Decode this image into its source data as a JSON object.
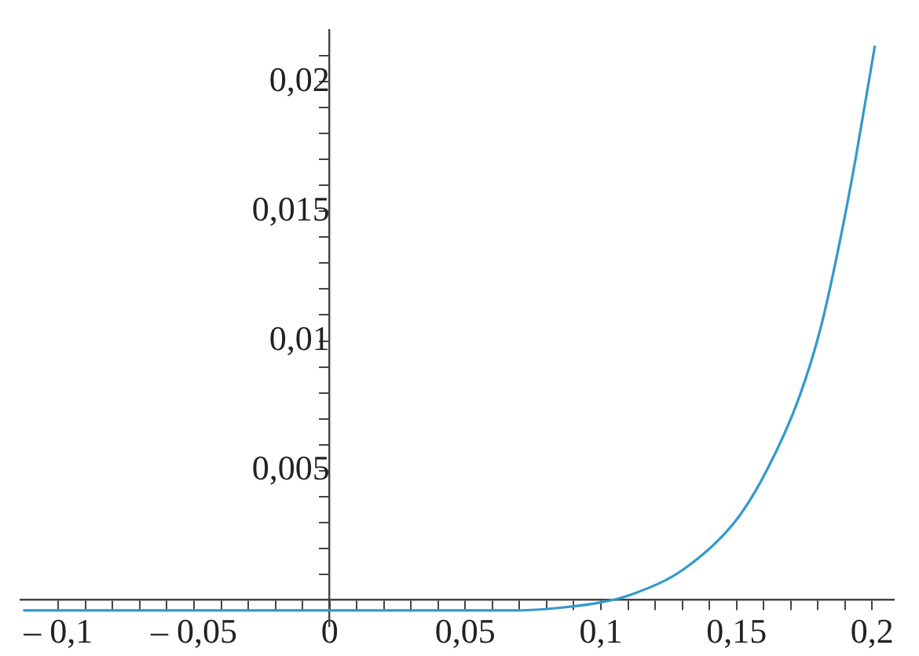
{
  "chart_data": {
    "type": "line",
    "grid": false,
    "legend": false,
    "marker": "none",
    "line_style": "solid",
    "xlim": [
      -0.114,
      0.208
    ],
    "ylim": [
      -0.001,
      0.022
    ],
    "xticks": [
      {
        "value": -0.1,
        "label": "– 0,1"
      },
      {
        "value": -0.09,
        "label": null
      },
      {
        "value": -0.08,
        "label": null
      },
      {
        "value": -0.07,
        "label": null
      },
      {
        "value": -0.06,
        "label": null
      },
      {
        "value": -0.05,
        "label": "– 0,05"
      },
      {
        "value": -0.04,
        "label": null
      },
      {
        "value": -0.03,
        "label": null
      },
      {
        "value": -0.02,
        "label": null
      },
      {
        "value": -0.01,
        "label": null
      },
      {
        "value": 0,
        "label": "0"
      },
      {
        "value": 0.01,
        "label": null
      },
      {
        "value": 0.02,
        "label": null
      },
      {
        "value": 0.03,
        "label": null
      },
      {
        "value": 0.04,
        "label": null
      },
      {
        "value": 0.05,
        "label": "0,05"
      },
      {
        "value": 0.06,
        "label": null
      },
      {
        "value": 0.07,
        "label": null
      },
      {
        "value": 0.08,
        "label": null
      },
      {
        "value": 0.09,
        "label": null
      },
      {
        "value": 0.1,
        "label": "0,1"
      },
      {
        "value": 0.11,
        "label": null
      },
      {
        "value": 0.12,
        "label": null
      },
      {
        "value": 0.13,
        "label": null
      },
      {
        "value": 0.14,
        "label": null
      },
      {
        "value": 0.15,
        "label": "0,15"
      },
      {
        "value": 0.16,
        "label": null
      },
      {
        "value": 0.17,
        "label": null
      },
      {
        "value": 0.18,
        "label": null
      },
      {
        "value": 0.19,
        "label": null
      },
      {
        "value": 0.2,
        "label": "0,2"
      }
    ],
    "yticks": [
      {
        "value": 0.001,
        "label": null
      },
      {
        "value": 0.002,
        "label": null
      },
      {
        "value": 0.003,
        "label": null
      },
      {
        "value": 0.004,
        "label": null
      },
      {
        "value": 0.005,
        "label": "0,005"
      },
      {
        "value": 0.006,
        "label": null
      },
      {
        "value": 0.007,
        "label": null
      },
      {
        "value": 0.008,
        "label": null
      },
      {
        "value": 0.009,
        "label": null
      },
      {
        "value": 0.01,
        "label": "0,01"
      },
      {
        "value": 0.011,
        "label": null
      },
      {
        "value": 0.012,
        "label": null
      },
      {
        "value": 0.013,
        "label": null
      },
      {
        "value": 0.014,
        "label": null
      },
      {
        "value": 0.015,
        "label": "0,015"
      },
      {
        "value": 0.016,
        "label": null
      },
      {
        "value": 0.017,
        "label": null
      },
      {
        "value": 0.018,
        "label": null
      },
      {
        "value": 0.019,
        "label": null
      },
      {
        "value": 0.02,
        "label": "0,02"
      },
      {
        "value": 0.021,
        "label": null
      }
    ],
    "series": [
      {
        "color": "#3399cc",
        "x": [
          -0.113,
          -0.05,
          0,
          0.05,
          0.07,
          0.085,
          0.0996,
          0.111,
          0.1307,
          0.15,
          0.1616,
          0.173,
          0.181,
          0.188,
          0.194,
          0.201
        ],
        "values": [
          -0.0004,
          -0.0004,
          -0.0004,
          -0.0004,
          -0.0004,
          -0.0003,
          -0.0001,
          0.0002,
          0.0012,
          0.0031,
          0.0051,
          0.0078,
          0.0105,
          0.0138,
          0.0171,
          0.0214
        ]
      }
    ]
  }
}
